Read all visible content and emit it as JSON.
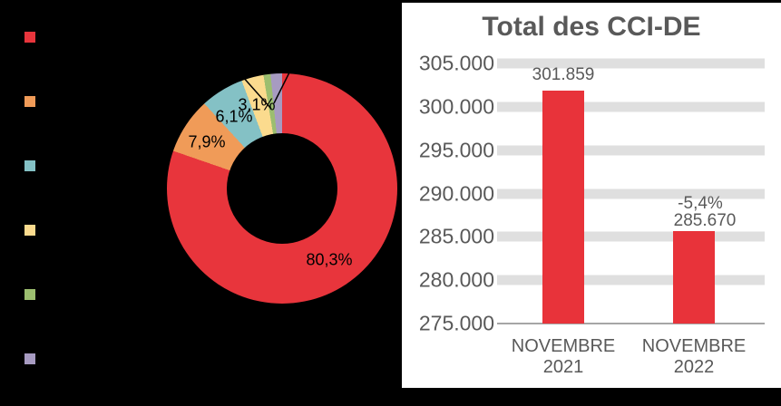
{
  "theme": {
    "background": "#000000",
    "card_background": "#FFFFFF",
    "text_gray": "#595959",
    "gridline_gray": "#DFDFDF",
    "axis_gray": "#A6A6A6",
    "bar_red": "#E8333A"
  },
  "chart_data": [
    {
      "type": "pie",
      "subtype": "donut",
      "title": "",
      "legend_position": "left",
      "legend_text_visible": false,
      "slices": [
        {
          "label": "80,3%",
          "value": 80.3,
          "color": "#E8353C"
        },
        {
          "label": "7,9%",
          "value": 7.9,
          "color": "#F09B58"
        },
        {
          "label": "6,1%",
          "value": 6.1,
          "color": "#84C1C5"
        },
        {
          "label": "3,1%",
          "value": 3.1,
          "color": "#FBDB8E"
        },
        {
          "label": "",
          "value": 1.0,
          "color": "#9CBE6F"
        },
        {
          "label": "",
          "value": 1.6,
          "color": "#A79BC1"
        }
      ]
    },
    {
      "type": "bar",
      "title": "Total des CCI-DE",
      "categories": [
        "NOVEMBRE 2021",
        "NOVEMBRE 2022"
      ],
      "values": [
        301859,
        285670
      ],
      "value_labels": [
        "301.859",
        "285.670"
      ],
      "annotations": [
        {
          "text": "-5,4%",
          "target_category": "NOVEMBRE 2022"
        }
      ],
      "ylim": [
        275000,
        305000
      ],
      "ytick_labels": [
        "305.000",
        "300.000",
        "295.000",
        "290.000",
        "285.000",
        "280.000",
        "275.000"
      ],
      "grid": "horizontal-stripes",
      "bar_color": "#E8333A",
      "legend": "none"
    }
  ]
}
